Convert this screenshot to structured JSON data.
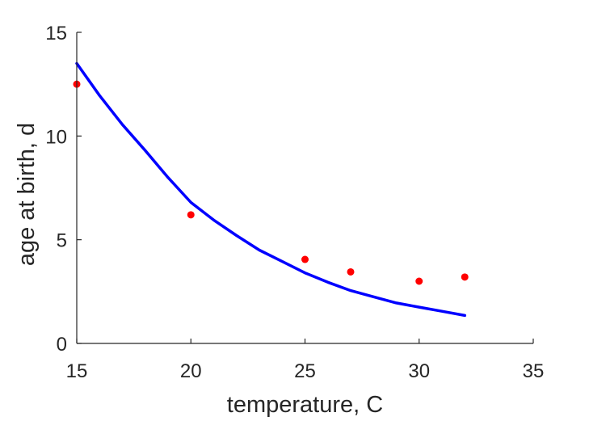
{
  "chart_data": {
    "type": "scatter",
    "title": "",
    "xlabel": "temperature, C",
    "ylabel": "age at birth, d",
    "xlim": [
      15,
      35
    ],
    "ylim": [
      0,
      15
    ],
    "xticks": [
      15,
      20,
      25,
      30,
      35
    ],
    "yticks": [
      0,
      5,
      10,
      15
    ],
    "xtick_labels": [
      "15",
      "20",
      "25",
      "30",
      "35"
    ],
    "ytick_labels": [
      "0",
      "5",
      "10",
      "15"
    ],
    "grid": false,
    "box": "left-bottom",
    "series": [
      {
        "kind": "points",
        "color": "#ff0000",
        "x": [
          15,
          20,
          25,
          27,
          30,
          32
        ],
        "y": [
          12.5,
          6.2,
          4.05,
          3.45,
          3.0,
          3.2
        ]
      },
      {
        "kind": "line",
        "color": "#0000ff",
        "x": [
          15,
          16,
          17,
          18,
          19,
          20,
          21,
          22,
          23,
          24,
          25,
          26,
          27,
          28,
          29,
          30,
          31,
          32
        ],
        "y": [
          13.5,
          11.95,
          10.55,
          9.3,
          8.0,
          6.8,
          5.95,
          5.2,
          4.5,
          3.95,
          3.4,
          2.95,
          2.55,
          2.25,
          1.95,
          1.75,
          1.55,
          1.35
        ]
      }
    ]
  }
}
